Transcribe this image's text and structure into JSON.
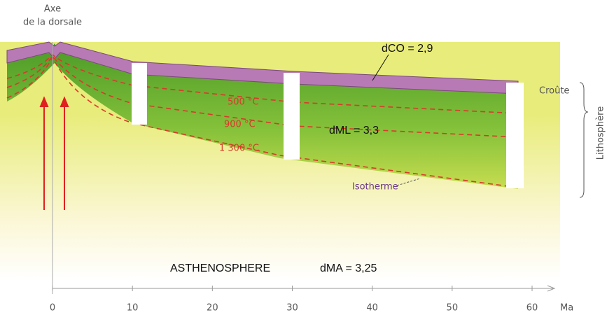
{
  "header": {
    "line1": "Axe",
    "line2": "de la dorsale"
  },
  "densities": {
    "crust": "dCO = 2,9",
    "mantle_lithosphere": "dML = 3,3",
    "asthenosphere": "dMA = 3,25"
  },
  "isotherms": [
    "500 °C",
    "900 °C",
    "1 300 °C"
  ],
  "labels": {
    "isotherm": "Isotherme",
    "crust": "Croûte",
    "lithosphere": "Lithosphère",
    "asthenosphere": "ASTHENOSPHERE"
  },
  "axis": {
    "ticks": [
      0,
      10,
      20,
      30,
      40,
      50,
      60
    ],
    "unit": "Ma"
  }
}
